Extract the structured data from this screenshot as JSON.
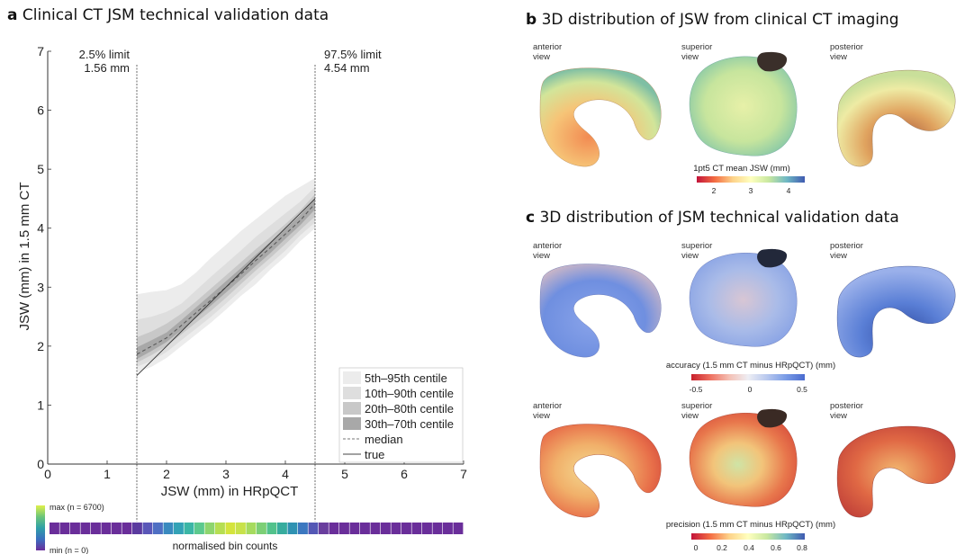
{
  "panel_a": {
    "letter": "a",
    "title": "Clinical CT JSM technical validation data",
    "limit_low_label": "2.5% limit",
    "limit_low_value": "1.56 mm",
    "limit_high_label": "97.5% limit",
    "limit_high_value": "4.54 mm",
    "bin_colorbar": {
      "max_label": "max (n = 6700)",
      "min_label": "min (n = 0)",
      "caption": "normalised bin counts"
    }
  },
  "panel_b": {
    "letter": "b",
    "title": "3D distribution of JSW from clinical CT imaging",
    "views": [
      "anterior\nview",
      "superior\nview",
      "posterior\nview"
    ],
    "colorbar": {
      "title": "1pt5 CT mean JSW (mm)",
      "ticks": [
        "2",
        "3",
        "4"
      ],
      "colors": [
        "#c2133a",
        "#f46d43",
        "#fdd38a",
        "#ffffbf",
        "#c8e8a0",
        "#6fb8c4",
        "#3f5ab0"
      ]
    }
  },
  "panel_c": {
    "letter": "c",
    "title": "3D distribution of JSM technical validation data",
    "accuracy": {
      "views": [
        "anterior\nview",
        "superior\nview",
        "posterior\nview"
      ],
      "colorbar": {
        "title": "accuracy (1.5 mm CT minus HRpQCT) (mm)",
        "ticks": [
          "-0.5",
          "0",
          "0.5"
        ],
        "colors": [
          "#c8202c",
          "#ee7060",
          "#f4c0b4",
          "#eeeef4",
          "#b8c8ee",
          "#7a9ce6",
          "#4a6bcf"
        ]
      }
    },
    "precision": {
      "views": [
        "anterior\nview",
        "superior\nview",
        "posterior\nview"
      ],
      "colorbar": {
        "title": "precision (1.5 mm CT minus HRpQCT) (mm)",
        "ticks": [
          "0",
          "0.2",
          "0.4",
          "0.6",
          "0.8"
        ],
        "colors": [
          "#c2133a",
          "#f46d43",
          "#fdd38a",
          "#ffffbf",
          "#c8e8a0",
          "#6fb8c4",
          "#3f5ab0"
        ]
      }
    }
  },
  "chart_data": {
    "type": "line",
    "xlabel": "JSW (mm) in HRpQCT",
    "ylabel": "JSW (mm) in 1.5 mm CT",
    "xlim": [
      0,
      7
    ],
    "ylim": [
      0,
      7
    ],
    "xticks": [
      0,
      1,
      2,
      3,
      4,
      5,
      6,
      7
    ],
    "yticks": [
      0,
      1,
      2,
      3,
      4,
      5,
      6,
      7
    ],
    "vlines": [
      1.5,
      4.5
    ],
    "x": [
      1.5,
      1.75,
      2.0,
      2.25,
      2.5,
      2.75,
      3.0,
      3.25,
      3.5,
      3.75,
      4.0,
      4.25,
      4.5
    ],
    "series": [
      {
        "name": "median",
        "style": "dashed",
        "values": [
          1.86,
          2.0,
          2.14,
          2.35,
          2.57,
          2.78,
          3.0,
          3.22,
          3.45,
          3.67,
          3.9,
          4.13,
          4.42
        ]
      },
      {
        "name": "true",
        "style": "solid",
        "values": [
          1.5,
          1.75,
          2.0,
          2.25,
          2.5,
          2.75,
          3.0,
          3.25,
          3.5,
          3.75,
          4.0,
          4.25,
          4.5
        ]
      }
    ],
    "bands": [
      {
        "name": "5th–95th centile",
        "color": "#ececec",
        "lower": [
          1.55,
          1.65,
          1.8,
          2.0,
          2.2,
          2.4,
          2.62,
          2.85,
          3.05,
          3.3,
          3.52,
          3.78,
          4.0
        ],
        "upper": [
          2.88,
          2.92,
          2.95,
          3.05,
          3.25,
          3.5,
          3.72,
          3.95,
          4.15,
          4.35,
          4.55,
          4.7,
          4.85
        ]
      },
      {
        "name": "10th–90th centile",
        "color": "#dedede",
        "lower": [
          1.65,
          1.75,
          1.9,
          2.1,
          2.3,
          2.5,
          2.72,
          2.95,
          3.18,
          3.4,
          3.62,
          3.88,
          4.1
        ],
        "upper": [
          2.45,
          2.5,
          2.58,
          2.72,
          2.95,
          3.18,
          3.4,
          3.62,
          3.85,
          4.05,
          4.25,
          4.45,
          4.7
        ]
      },
      {
        "name": "20th–80th centile",
        "color": "#c8c8c8",
        "lower": [
          1.72,
          1.85,
          2.0,
          2.2,
          2.4,
          2.6,
          2.82,
          3.05,
          3.28,
          3.5,
          3.73,
          3.97,
          4.2
        ],
        "upper": [
          2.15,
          2.25,
          2.38,
          2.55,
          2.76,
          2.98,
          3.2,
          3.42,
          3.64,
          3.85,
          4.07,
          4.3,
          4.58
        ]
      },
      {
        "name": "30th–70th centile",
        "color": "#a8a8a8",
        "lower": [
          1.78,
          1.92,
          2.07,
          2.27,
          2.48,
          2.69,
          2.91,
          3.13,
          3.36,
          3.58,
          3.82,
          4.05,
          4.32
        ],
        "upper": [
          1.98,
          2.1,
          2.23,
          2.44,
          2.66,
          2.88,
          3.1,
          3.32,
          3.55,
          3.77,
          3.99,
          4.22,
          4.52
        ]
      }
    ],
    "legend": [
      "5th–95th centile",
      "10th–90th centile",
      "20th–80th centile",
      "30th–70th centile",
      "median",
      "true"
    ],
    "legend_position": "bottom-right",
    "bins": {
      "count": 40,
      "colors": [
        "#6a2e9a",
        "#6a2e9a",
        "#6a2e9a",
        "#6a2e9a",
        "#6a2e9a",
        "#6a2e9a",
        "#6a2e9a",
        "#6a2e9a",
        "#5b3b9f",
        "#5a57b8",
        "#4f6fc3",
        "#3a8abf",
        "#33a2b6",
        "#3bb6a6",
        "#5cc98e",
        "#8ed56e",
        "#b6de52",
        "#d4e43c",
        "#c8e24a",
        "#a6db5e",
        "#7ccf76",
        "#52c28c",
        "#37ac9e",
        "#2f92b2",
        "#3c78c0",
        "#5458b5",
        "#6a3e9e",
        "#6a2e9a",
        "#6a2e9a",
        "#6a2e9a",
        "#6a2e9a",
        "#6a2e9a",
        "#6a2e9a",
        "#6a2e9a",
        "#6a2e9a",
        "#6a2e9a",
        "#6a2e9a",
        "#6a2e9a",
        "#6a2e9a",
        "#6a2e9a"
      ],
      "scale_colors": [
        "#6a2e9a",
        "#3a6fc0",
        "#2fa0a8",
        "#6cc57a",
        "#dff04a"
      ]
    }
  }
}
